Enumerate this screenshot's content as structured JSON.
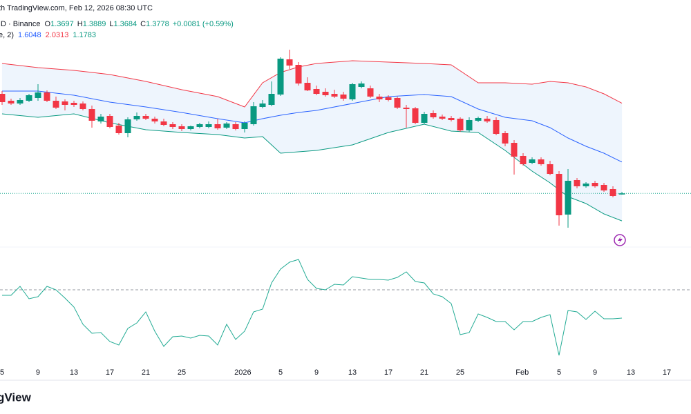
{
  "header": {
    "source": "th TradingView.com, Feb 12, 2026 08:30 UTC",
    "symbol": "ID · Binance",
    "ohlc_labels": [
      "O",
      "H",
      "L",
      "C"
    ],
    "change": "+0.0081 (+0.59%)",
    "indicator": "e, 2)",
    "logo": "gView"
  },
  "chart_data": [
    {
      "type": "candlestick",
      "up_color": "#089981",
      "down_color": "#f23645",
      "xlim": [
        -0.23,
        76.69
      ],
      "ylim": [
        0.994,
        2.779
      ],
      "x": [
        0,
        1,
        2,
        3,
        4,
        5,
        6,
        7,
        8,
        9,
        10,
        11,
        12,
        13,
        14,
        15,
        16,
        17,
        18,
        19,
        20,
        21,
        22,
        23,
        24,
        25,
        26,
        27,
        28,
        29,
        30,
        31,
        32,
        33,
        34,
        35,
        36,
        37,
        38,
        39,
        40,
        41,
        42,
        43,
        44,
        45,
        46,
        47,
        48,
        49,
        50,
        51,
        52,
        53,
        54,
        55,
        56,
        57,
        58,
        59,
        60,
        61,
        62,
        63,
        64,
        65,
        66,
        67,
        68,
        69
      ],
      "open": [
        2.099,
        2.049,
        2.029,
        2.049,
        2.069,
        2.109,
        2.049,
        2.044,
        2.034,
        2.029,
        1.989,
        1.899,
        1.939,
        1.869,
        1.814,
        1.914,
        1.939,
        1.919,
        1.899,
        1.879,
        1.864,
        1.844,
        1.859,
        1.859,
        1.879,
        1.854,
        1.879,
        1.844,
        1.879,
        2.004,
        2.019,
        2.094,
        2.349,
        2.309,
        2.179,
        2.134,
        2.114,
        2.099,
        2.094,
        2.059,
        2.149,
        2.139,
        2.079,
        2.074,
        2.069,
        1.999,
        1.994,
        1.889,
        1.959,
        1.934,
        1.924,
        1.919,
        1.834,
        1.904,
        1.919,
        1.909,
        1.814,
        1.744,
        1.649,
        1.599,
        1.624,
        1.589,
        1.519,
        1.224,
        1.474,
        1.429,
        1.454,
        1.439,
        1.409,
        1.3697
      ],
      "high": [
        2.119,
        2.064,
        2.069,
        2.099,
        2.169,
        2.124,
        2.079,
        2.059,
        2.049,
        2.044,
        2.014,
        1.954,
        1.954,
        1.889,
        1.929,
        1.964,
        1.954,
        1.934,
        1.919,
        1.894,
        1.879,
        1.869,
        1.889,
        1.899,
        1.919,
        1.894,
        1.894,
        1.899,
        2.039,
        2.054,
        2.189,
        2.364,
        2.419,
        2.329,
        2.219,
        2.159,
        2.139,
        2.129,
        2.114,
        2.179,
        2.189,
        2.159,
        2.099,
        2.089,
        2.079,
        2.019,
        2.004,
        1.969,
        1.979,
        1.949,
        1.939,
        1.929,
        1.929,
        1.934,
        1.939,
        1.929,
        1.829,
        1.764,
        1.669,
        1.639,
        1.639,
        1.614,
        1.539,
        1.554,
        1.489,
        1.459,
        1.469,
        1.454,
        1.429,
        1.3889
      ],
      "low": [
        2.019,
        2.019,
        2.019,
        2.039,
        2.049,
        2.039,
        1.989,
        1.979,
        2.004,
        1.979,
        1.854,
        1.884,
        1.849,
        1.804,
        1.784,
        1.904,
        1.909,
        1.884,
        1.864,
        1.844,
        1.829,
        1.834,
        1.849,
        1.849,
        1.839,
        1.844,
        1.834,
        1.819,
        1.869,
        1.994,
        2.009,
        2.084,
        2.279,
        2.159,
        2.119,
        2.089,
        2.079,
        2.069,
        2.049,
        2.049,
        2.139,
        2.069,
        2.039,
        2.044,
        1.989,
        1.854,
        1.879,
        1.879,
        1.919,
        1.909,
        1.899,
        1.824,
        1.824,
        1.894,
        1.889,
        1.799,
        1.719,
        1.514,
        1.579,
        1.589,
        1.579,
        1.509,
        1.144,
        1.129,
        1.414,
        1.419,
        1.419,
        1.389,
        1.349,
        1.3684
      ],
      "close": [
        2.039,
        2.029,
        2.054,
        2.089,
        2.109,
        2.049,
        1.999,
        2.019,
        2.019,
        1.989,
        1.904,
        1.934,
        1.859,
        1.814,
        1.914,
        1.939,
        1.919,
        1.899,
        1.874,
        1.859,
        1.844,
        1.864,
        1.879,
        1.879,
        1.849,
        1.884,
        1.844,
        1.889,
        2.009,
        2.029,
        2.099,
        2.354,
        2.304,
        2.174,
        2.124,
        2.099,
        2.089,
        2.079,
        2.064,
        2.169,
        2.174,
        2.079,
        2.059,
        2.054,
        1.999,
        1.989,
        1.889,
        1.954,
        1.929,
        1.919,
        1.909,
        1.834,
        1.909,
        1.924,
        1.899,
        1.809,
        1.739,
        1.644,
        1.589,
        1.624,
        1.589,
        1.519,
        1.219,
        1.469,
        1.429,
        1.449,
        1.429,
        1.399,
        1.359,
        1.3778
      ],
      "price_line_color": "#22ab94",
      "bands": {
        "x": [
          0,
          4,
          8,
          12,
          16,
          20,
          24,
          27,
          29,
          31,
          33,
          35,
          39,
          43,
          47,
          50,
          53,
          56,
          59,
          61,
          63,
          65,
          67,
          69
        ],
        "fill": "#e3effb",
        "middle": {
          "color": "#2962ff",
          "values": [
            2.119,
            2.119,
            2.089,
            2.039,
            2.004,
            1.964,
            1.919,
            1.889,
            1.919,
            1.944,
            1.964,
            1.979,
            2.029,
            2.079,
            2.094,
            2.079,
            1.989,
            1.929,
            1.904,
            1.854,
            1.779,
            1.719,
            1.669,
            1.6048
          ]
        },
        "upper": {
          "color": "#f23645",
          "values": [
            2.319,
            2.289,
            2.269,
            2.239,
            2.189,
            2.129,
            2.079,
            2.004,
            2.179,
            2.254,
            2.294,
            2.319,
            2.339,
            2.329,
            2.319,
            2.309,
            2.179,
            2.179,
            2.169,
            2.189,
            2.179,
            2.149,
            2.099,
            2.0313
          ]
        },
        "lower": {
          "color": "#089981",
          "values": [
            1.954,
            1.929,
            1.954,
            1.889,
            1.839,
            1.819,
            1.804,
            1.779,
            1.789,
            1.669,
            1.679,
            1.689,
            1.729,
            1.819,
            1.879,
            1.829,
            1.819,
            1.689,
            1.539,
            1.454,
            1.354,
            1.304,
            1.229,
            1.1783
          ]
        }
      },
      "xticks": [
        {
          "value": 0,
          "label": "5"
        },
        {
          "value": 4,
          "label": "9"
        },
        {
          "value": 8,
          "label": "13"
        },
        {
          "value": 12,
          "label": "17"
        },
        {
          "value": 16,
          "label": "21"
        },
        {
          "value": 20,
          "label": "25"
        },
        {
          "value": 26.8,
          "label": "2026"
        },
        {
          "value": 31,
          "label": "5"
        },
        {
          "value": 35,
          "label": "9"
        },
        {
          "value": 39,
          "label": "13"
        },
        {
          "value": 43,
          "label": "17"
        },
        {
          "value": 47,
          "label": "21"
        },
        {
          "value": 51,
          "label": "25"
        },
        {
          "value": 57.9,
          "label": "Feb"
        },
        {
          "value": 62,
          "label": "5"
        },
        {
          "value": 66,
          "label": "9"
        },
        {
          "value": 70,
          "label": "13"
        },
        {
          "value": 74,
          "label": "17"
        }
      ]
    },
    {
      "type": "line",
      "color": "#22ab94",
      "xlim": [
        -0.23,
        76.69
      ],
      "ylim": [
        -15,
        80
      ],
      "level": 50,
      "level_color": "#9598a1",
      "x": [
        0,
        1,
        2,
        3,
        4,
        5,
        6,
        7,
        8,
        9,
        10,
        11,
        12,
        13,
        14,
        15,
        16,
        17,
        18,
        19,
        20,
        21,
        22,
        23,
        24,
        25,
        26,
        27,
        28,
        29,
        30,
        31,
        32,
        33,
        34,
        35,
        36,
        37,
        38,
        39,
        40,
        41,
        42,
        43,
        44,
        45,
        46,
        47,
        48,
        49,
        50,
        51,
        52,
        53,
        54,
        55,
        56,
        57,
        58,
        59,
        60,
        61,
        62,
        63,
        64,
        65,
        66,
        67,
        68,
        69
      ],
      "values": [
        46,
        46,
        52.5,
        43.5,
        45,
        52.5,
        50,
        44,
        37.5,
        25,
        18.5,
        19,
        12.5,
        10,
        22,
        26,
        34,
        20,
        9,
        16,
        16.5,
        15,
        17,
        16.5,
        10,
        25,
        14,
        20,
        34,
        36,
        55,
        65,
        70,
        72,
        57.5,
        51,
        50,
        54,
        53.5,
        59.5,
        58.5,
        57.5,
        57.5,
        57,
        59,
        63,
        56,
        55,
        47,
        45,
        40,
        17.5,
        19,
        32.5,
        30,
        27,
        27,
        21,
        27,
        27,
        30,
        32,
        2.5,
        35,
        34,
        28.5,
        34.5,
        29,
        29,
        29.5
      ]
    }
  ]
}
